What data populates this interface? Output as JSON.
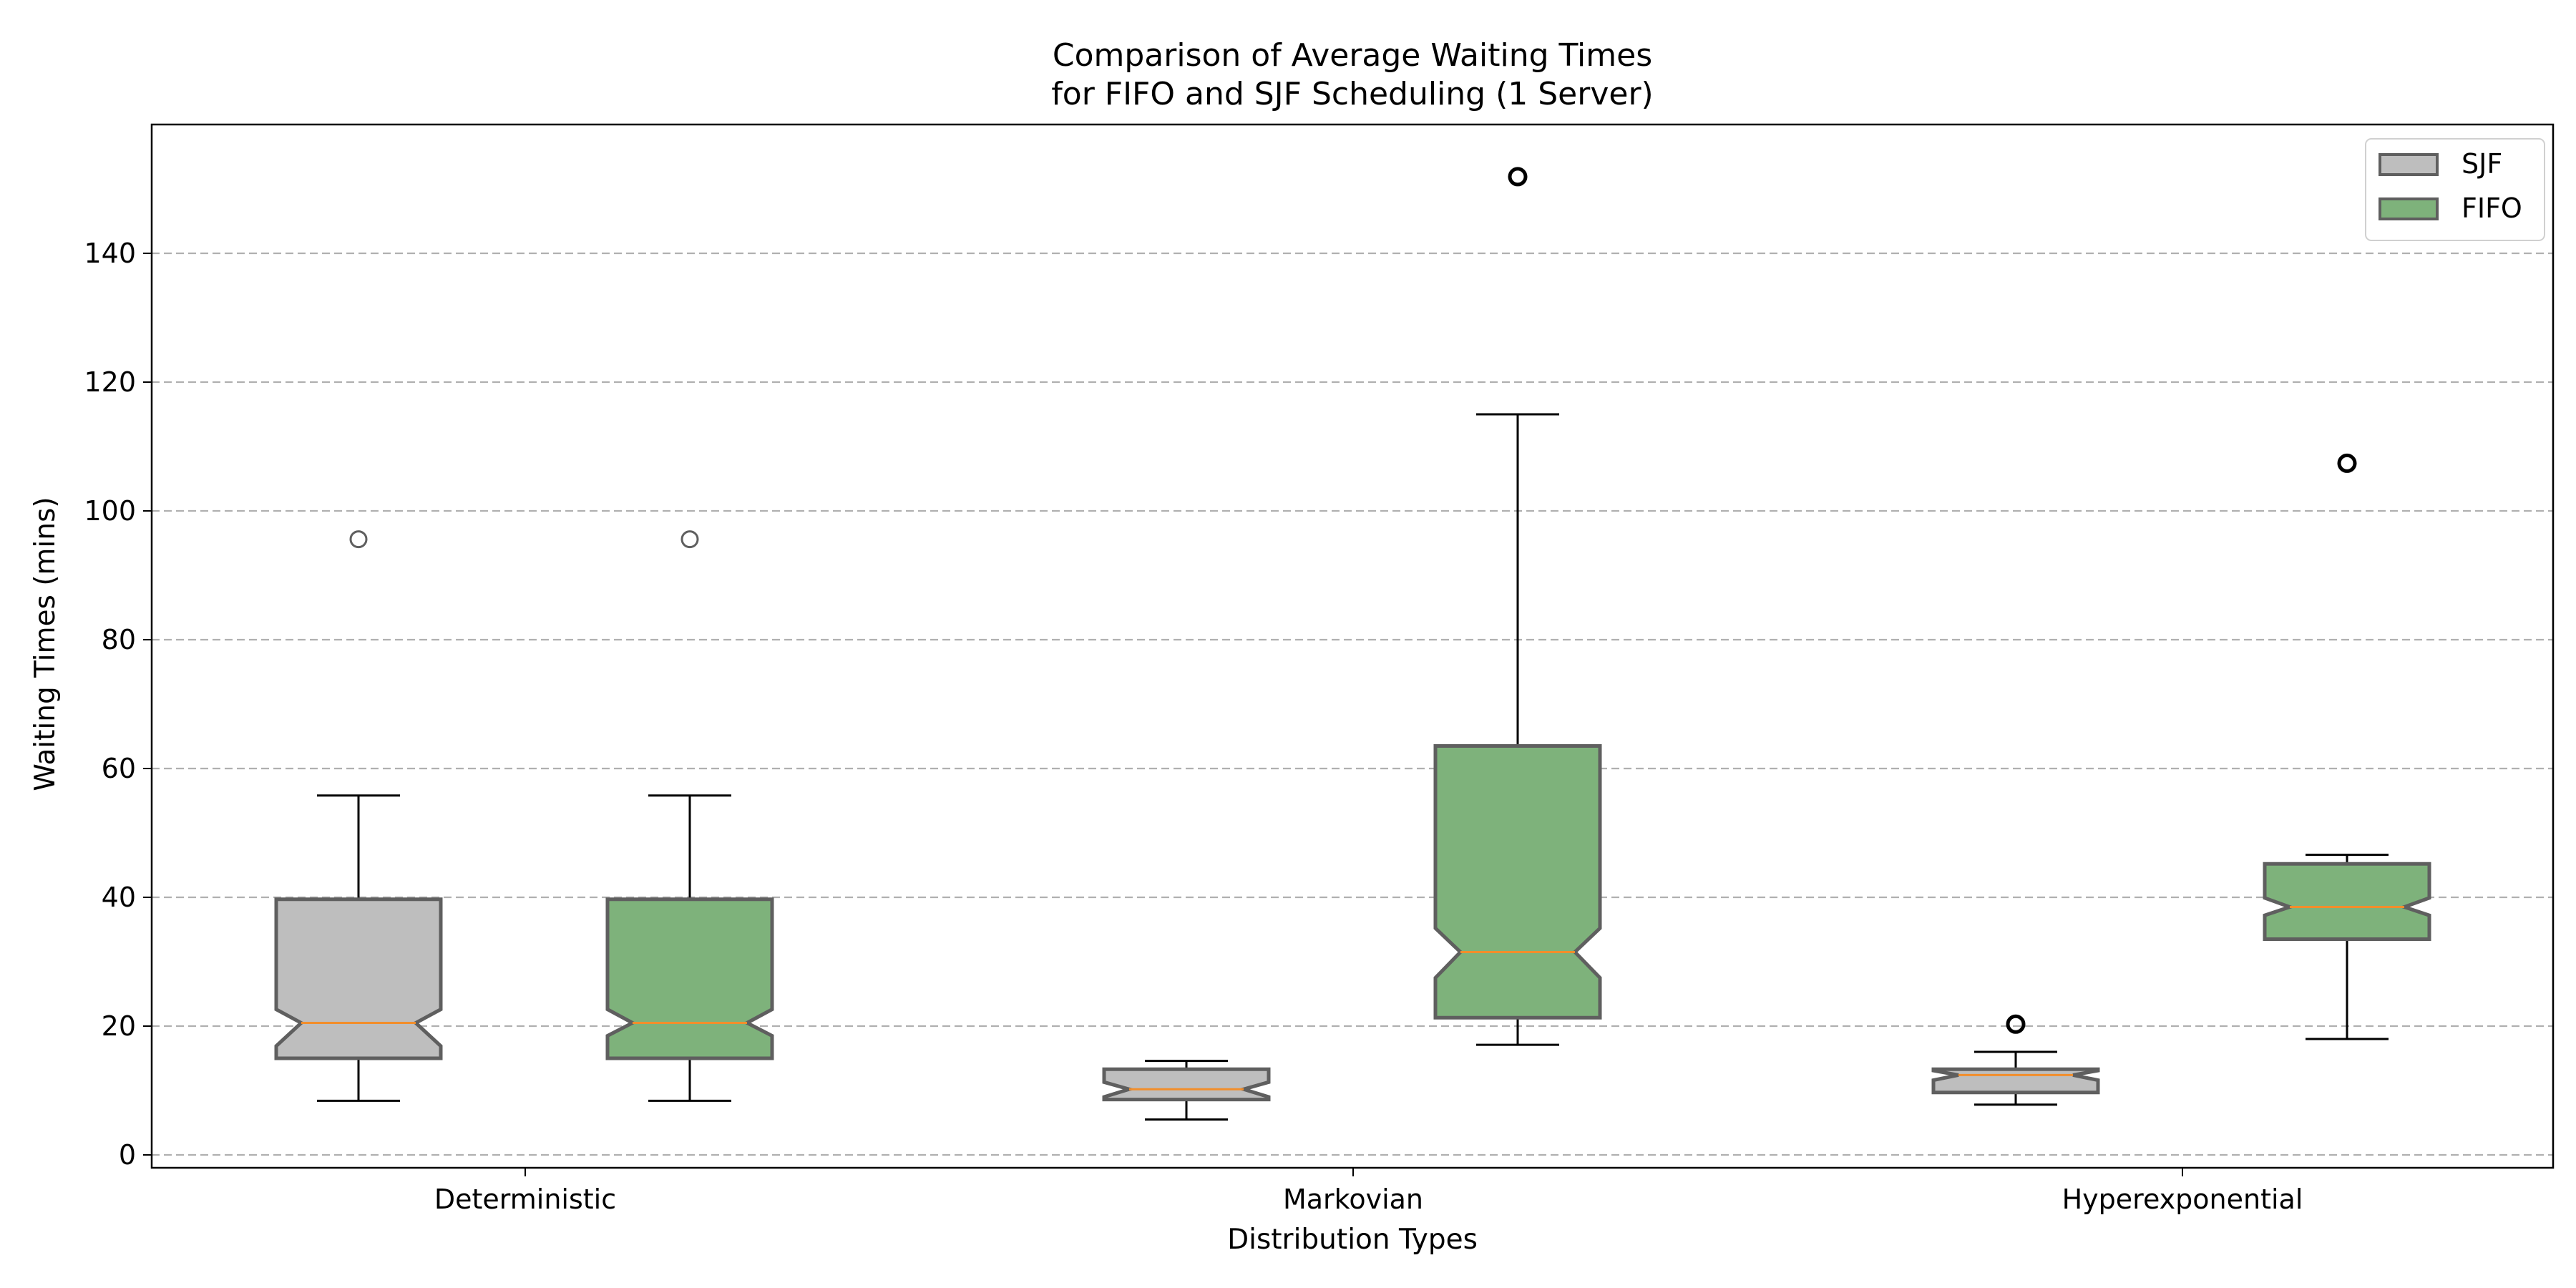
{
  "chart_data": {
    "type": "boxplot",
    "title_line1": "Comparison of Average Waiting Times",
    "title_line2": "for FIFO and SJF Scheduling (1 Server)",
    "xlabel": "Distribution Types",
    "ylabel": "Waiting Times (mins)",
    "ylim": [
      -2,
      160
    ],
    "yticks": [
      0,
      20,
      40,
      60,
      80,
      100,
      120,
      140
    ],
    "grid": "y-dashed",
    "legend_position": "top-right",
    "categories": [
      "Deterministic",
      "Markovian",
      "Hyperexponential"
    ],
    "series": [
      {
        "name": "SJF",
        "color": "#bebebe",
        "edge_color": "#5f5f5f",
        "boxes": [
          {
            "category": "Deterministic",
            "whisker_low": 8.4,
            "q1": 15.0,
            "median": 20.5,
            "q3": 39.7,
            "whisker_high": 55.8,
            "notch_low": 16.9,
            "notch_high": 22.6,
            "outliers": [
              95.6
            ]
          },
          {
            "category": "Markovian",
            "whisker_low": 5.5,
            "q1": 8.6,
            "median": 10.2,
            "q3": 13.3,
            "whisker_high": 14.6,
            "notch_low": 9.0,
            "notch_high": 11.3,
            "outliers": []
          },
          {
            "category": "Hyperexponential",
            "whisker_low": 7.8,
            "q1": 9.7,
            "median": 12.4,
            "q3": 13.3,
            "whisker_high": 16.0,
            "notch_low": 11.6,
            "notch_high": 13.1,
            "outliers": [
              20.3
            ]
          }
        ]
      },
      {
        "name": "FIFO",
        "color": "#7eb27b",
        "edge_color": "#5f5f5f",
        "boxes": [
          {
            "category": "Deterministic",
            "whisker_low": 8.4,
            "q1": 15.0,
            "median": 20.5,
            "q3": 39.7,
            "whisker_high": 55.8,
            "notch_low": 18.5,
            "notch_high": 22.6,
            "outliers": [
              95.6
            ]
          },
          {
            "category": "Markovian",
            "whisker_low": 17.1,
            "q1": 21.3,
            "median": 31.5,
            "q3": 63.5,
            "whisker_high": 115.0,
            "notch_low": 27.5,
            "notch_high": 35.2,
            "outliers": [
              151.9
            ]
          },
          {
            "category": "Hyperexponential",
            "whisker_low": 18.0,
            "q1": 33.5,
            "median": 38.5,
            "q3": 45.2,
            "whisker_high": 46.6,
            "notch_low": 37.2,
            "notch_high": 39.9,
            "outliers": [
              107.4
            ]
          }
        ]
      }
    ]
  }
}
